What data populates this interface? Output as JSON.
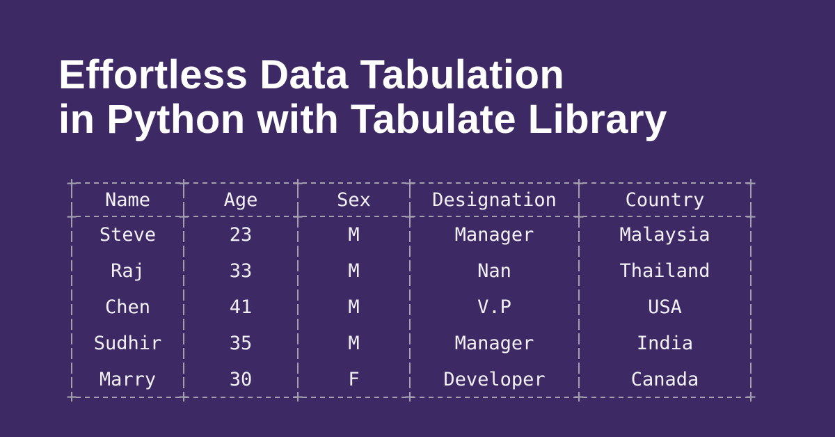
{
  "colors": {
    "background": "#3d2a64",
    "border_dash": "#a49eae",
    "table_text": "#f3f0f6",
    "title_text": "#ffffff"
  },
  "title": {
    "line1": "Effortless Data Tabulation",
    "line2": "in Python with Tabulate Library"
  },
  "table": {
    "headers": [
      "Name",
      "Age",
      "Sex",
      "Designation",
      "Country"
    ],
    "rows": [
      [
        "Steve",
        "23",
        "M",
        "Manager",
        "Malaysia"
      ],
      [
        "Raj",
        "33",
        "M",
        "Nan",
        "Thailand"
      ],
      [
        "Chen",
        "41",
        "M",
        "V.P",
        "USA"
      ],
      [
        "Sudhir",
        "35",
        "M",
        "Manager",
        "India"
      ],
      [
        "Marry",
        "30",
        "F",
        "Developer",
        "Canada"
      ]
    ]
  },
  "chart_data": {
    "type": "table",
    "title": "Effortless Data Tabulation in Python with Tabulate Library",
    "columns": [
      "Name",
      "Age",
      "Sex",
      "Designation",
      "Country"
    ],
    "records": [
      {
        "Name": "Steve",
        "Age": 23,
        "Sex": "M",
        "Designation": "Manager",
        "Country": "Malaysia"
      },
      {
        "Name": "Raj",
        "Age": 33,
        "Sex": "M",
        "Designation": "Nan",
        "Country": "Thailand"
      },
      {
        "Name": "Chen",
        "Age": 41,
        "Sex": "M",
        "Designation": "V.P",
        "Country": "USA"
      },
      {
        "Name": "Sudhir",
        "Age": 35,
        "Sex": "M",
        "Designation": "Manager",
        "Country": "India"
      },
      {
        "Name": "Marry",
        "Age": 30,
        "Sex": "F",
        "Designation": "Developer",
        "Country": "Canada"
      }
    ]
  }
}
